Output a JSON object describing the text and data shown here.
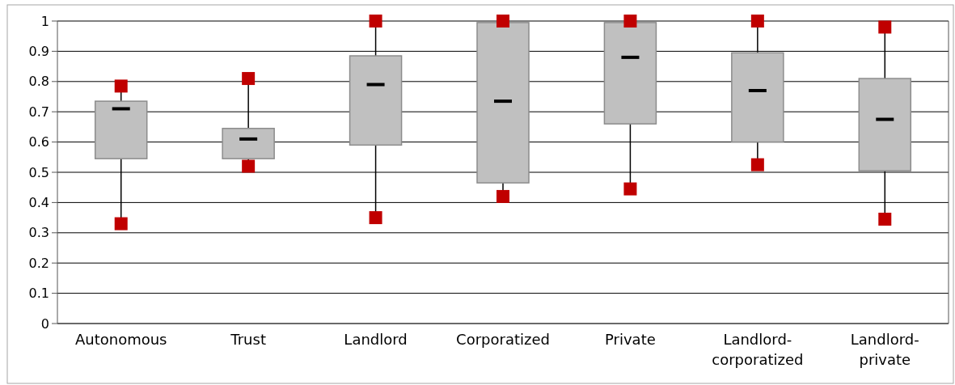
{
  "chart_data": {
    "type": "box",
    "categories": [
      "Autonomous",
      "Trust",
      "Landlord",
      "Corporatized",
      "Private",
      "Landlord-corporatized",
      "Landlord-private"
    ],
    "color": "#c0c0c0",
    "marker": "square",
    "grid": "y",
    "ylim": [
      0,
      1
    ],
    "yticks": [
      0,
      {
        "value": 0.1,
        "label": "0.1"
      },
      {
        "value": 0.2,
        "label": "0.2"
      },
      {
        "value": 0.3,
        "label": "0.3"
      },
      {
        "value": 0.4,
        "label": "0.4"
      },
      {
        "value": 0.5,
        "label": "0.5"
      },
      {
        "value": 0.6,
        "label": "0.6"
      },
      {
        "value": 0.7,
        "label": "0.7"
      },
      {
        "value": 0.8,
        "label": "0.8"
      },
      {
        "value": 0.9,
        "label": "0.9"
      },
      1
    ],
    "boxes": [
      {
        "low": 0.33,
        "q1": 0.545,
        "median": 0.71,
        "q3": 0.735,
        "high": 0.785
      },
      {
        "low": 0.52,
        "q1": 0.545,
        "median": 0.61,
        "q3": 0.645,
        "high": 0.81
      },
      {
        "low": 0.35,
        "q1": 0.59,
        "median": 0.79,
        "q3": 0.885,
        "high": 1.0
      },
      {
        "low": 0.42,
        "q1": 0.465,
        "median": 0.735,
        "q3": 0.995,
        "high": 1.0
      },
      {
        "low": 0.445,
        "q1": 0.66,
        "median": 0.88,
        "q3": 0.995,
        "high": 1.0
      },
      {
        "low": 0.525,
        "q1": 0.6,
        "median": 0.77,
        "q3": 0.895,
        "high": 1.0
      },
      {
        "low": 0.345,
        "q1": 0.505,
        "median": 0.675,
        "q3": 0.81,
        "high": 0.98
      }
    ],
    "series": [
      {
        "type": "scatter",
        "color": "#c00000",
        "x": [
          "Autonomous",
          "Autonomous",
          "Trust",
          "Trust",
          "Landlord",
          "Landlord",
          "Corporatized",
          "Corporatized",
          "Private",
          "Private",
          "Landlord-corporatized",
          "Landlord-corporatized",
          "Landlord-private",
          "Landlord-private"
        ],
        "values": [
          0.785,
          0.33,
          0.81,
          0.52,
          1.0,
          0.35,
          1.0,
          0.42,
          1.0,
          0.445,
          1.0,
          0.525,
          0.98,
          0.345
        ]
      }
    ]
  }
}
